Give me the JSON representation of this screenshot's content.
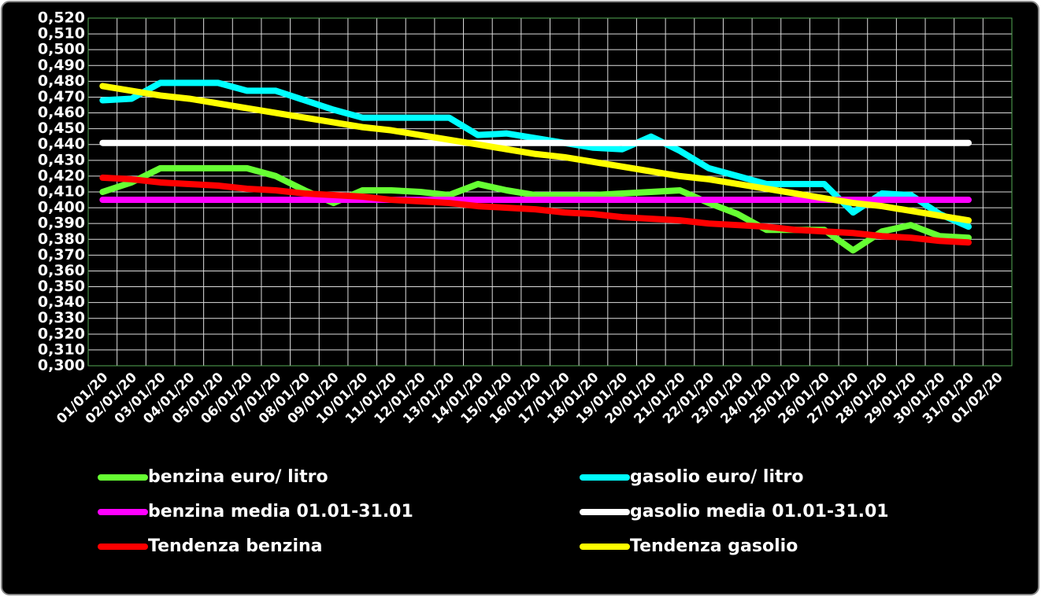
{
  "chart_data": {
    "type": "line",
    "categories": [
      "01/01/20",
      "02/01/20",
      "03/01/20",
      "04/01/20",
      "05/01/20",
      "06/01/20",
      "07/01/20",
      "08/01/20",
      "09/01/20",
      "10/01/20",
      "11/01/20",
      "12/01/20",
      "13/01/20",
      "14/01/20",
      "15/01/20",
      "16/01/20",
      "17/01/20",
      "18/01/20",
      "19/01/20",
      "20/01/20",
      "21/01/20",
      "22/01/20",
      "23/01/20",
      "24/01/20",
      "25/01/20",
      "26/01/20",
      "27/01/20",
      "28/01/20",
      "29/01/20",
      "30/01/20",
      "31/01/20",
      "01/02/20"
    ],
    "series": [
      {
        "name": "benzina euro/ litro",
        "color": "#66ff33",
        "values": [
          0.41,
          0.416,
          0.425,
          0.425,
          0.425,
          0.425,
          0.42,
          0.411,
          0.403,
          0.411,
          0.411,
          0.41,
          0.408,
          0.415,
          0.411,
          0.408,
          0.408,
          0.408,
          0.409,
          0.41,
          0.411,
          0.403,
          0.396,
          0.386,
          0.386,
          0.386,
          0.373,
          0.385,
          0.389,
          0.382,
          0.381,
          null
        ]
      },
      {
        "name": "gasolio euro/ litro",
        "color": "#00ffff",
        "values": [
          0.468,
          0.469,
          0.479,
          0.479,
          0.479,
          0.474,
          0.474,
          0.468,
          0.462,
          0.457,
          0.457,
          0.457,
          0.457,
          0.446,
          0.447,
          0.444,
          0.441,
          0.438,
          0.437,
          0.445,
          0.436,
          0.425,
          0.42,
          0.415,
          0.415,
          0.415,
          0.397,
          0.409,
          0.408,
          0.396,
          0.388,
          null
        ]
      },
      {
        "name": "benzina media 01.01-31.01",
        "color": "#ff00ff",
        "values": [
          0.405,
          0.405,
          0.405,
          0.405,
          0.405,
          0.405,
          0.405,
          0.405,
          0.405,
          0.405,
          0.405,
          0.405,
          0.405,
          0.405,
          0.405,
          0.405,
          0.405,
          0.405,
          0.405,
          0.405,
          0.405,
          0.405,
          0.405,
          0.405,
          0.405,
          0.405,
          0.405,
          0.405,
          0.405,
          0.405,
          0.405,
          null
        ]
      },
      {
        "name": "gasolio media 01.01-31.01",
        "color": "#ffffff",
        "values": [
          0.441,
          0.441,
          0.441,
          0.441,
          0.441,
          0.441,
          0.441,
          0.441,
          0.441,
          0.441,
          0.441,
          0.441,
          0.441,
          0.441,
          0.441,
          0.441,
          0.441,
          0.441,
          0.441,
          0.441,
          0.441,
          0.441,
          0.441,
          0.441,
          0.441,
          0.441,
          0.441,
          0.441,
          0.441,
          0.441,
          0.441,
          null
        ]
      },
      {
        "name": "Tendenza benzina",
        "color": "#ff0000",
        "values": [
          0.419,
          0.418,
          0.416,
          0.415,
          0.414,
          0.412,
          0.411,
          0.409,
          0.408,
          0.407,
          0.405,
          0.404,
          0.403,
          0.401,
          0.4,
          0.399,
          0.397,
          0.396,
          0.394,
          0.393,
          0.392,
          0.39,
          0.389,
          0.388,
          0.386,
          0.385,
          0.384,
          0.382,
          0.381,
          0.379,
          0.378,
          null
        ]
      },
      {
        "name": "Tendenza gasolio",
        "color": "#ffff00",
        "values": [
          0.477,
          0.474,
          0.471,
          0.469,
          0.466,
          0.463,
          0.46,
          0.457,
          0.454,
          0.451,
          0.449,
          0.446,
          0.443,
          0.44,
          0.437,
          0.434,
          0.432,
          0.429,
          0.426,
          0.423,
          0.42,
          0.418,
          0.415,
          0.412,
          0.409,
          0.406,
          0.403,
          0.401,
          0.398,
          0.395,
          0.392,
          null
        ]
      }
    ],
    "ylim": [
      0.3,
      0.52
    ],
    "yticks": [
      {
        "value": 0.3,
        "label": "0,300"
      },
      {
        "value": 0.31,
        "label": "0,310"
      },
      {
        "value": 0.32,
        "label": "0,320"
      },
      {
        "value": 0.33,
        "label": "0,330"
      },
      {
        "value": 0.34,
        "label": "0,340"
      },
      {
        "value": 0.35,
        "label": "0,350"
      },
      {
        "value": 0.36,
        "label": "0,360"
      },
      {
        "value": 0.37,
        "label": "0,370"
      },
      {
        "value": 0.38,
        "label": "0,380"
      },
      {
        "value": 0.39,
        "label": "0,390"
      },
      {
        "value": 0.4,
        "label": "0,400"
      },
      {
        "value": 0.41,
        "label": "0,410"
      },
      {
        "value": 0.42,
        "label": "0,420"
      },
      {
        "value": 0.43,
        "label": "0,430"
      },
      {
        "value": 0.44,
        "label": "0,440"
      },
      {
        "value": 0.45,
        "label": "0,450"
      },
      {
        "value": 0.46,
        "label": "0,460"
      },
      {
        "value": 0.47,
        "label": "0,470"
      },
      {
        "value": 0.48,
        "label": "0,480"
      },
      {
        "value": 0.49,
        "label": "0,490"
      },
      {
        "value": 0.5,
        "label": "0,500"
      },
      {
        "value": 0.51,
        "label": "0,510"
      },
      {
        "value": 0.52,
        "label": "0,520"
      }
    ],
    "grid": true
  }
}
